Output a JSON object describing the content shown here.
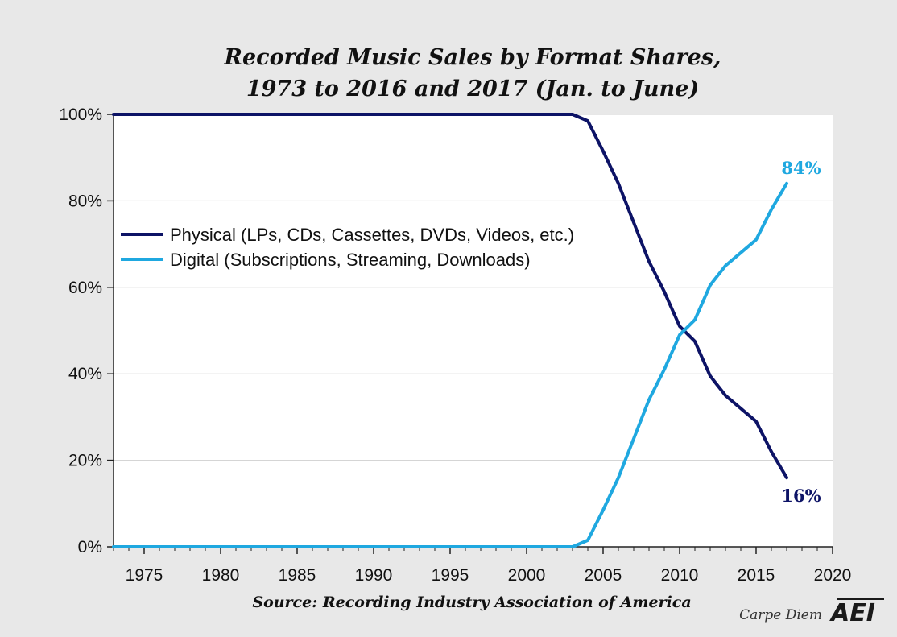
{
  "chart_data": {
    "type": "line",
    "title_line1": "Recorded Music Sales by Format Shares,",
    "title_line2": "1973 to 2016 and 2017 (Jan. to June)",
    "source": "Source: Recording Industry Association of America",
    "xlim": [
      1973,
      2020
    ],
    "ylim": [
      0,
      100
    ],
    "x_ticks": [
      1975,
      1980,
      1985,
      1990,
      1995,
      2000,
      2005,
      2010,
      2015,
      2020
    ],
    "y_ticks": [
      {
        "value": 0,
        "label": "0%"
      },
      {
        "value": 20,
        "label": "20%"
      },
      {
        "value": 40,
        "label": "40%"
      },
      {
        "value": 60,
        "label": "60%"
      },
      {
        "value": 80,
        "label": "80%"
      },
      {
        "value": 100,
        "label": "100%"
      }
    ],
    "grid": true,
    "legend_position": "upper-left",
    "series": [
      {
        "name": "Physical (LPs, CDs, Cassettes, DVDs, Videos, etc.)",
        "color": "#0d1366",
        "x": [
          1973,
          2003,
          2004,
          2005,
          2006,
          2007,
          2008,
          2009,
          2010,
          2011,
          2012,
          2013,
          2014,
          2015,
          2016,
          2017
        ],
        "y": [
          100,
          100,
          98.5,
          91.5,
          84,
          75,
          66,
          59,
          51,
          47.5,
          39.5,
          35,
          32,
          29,
          22,
          16
        ],
        "end_label": "16%"
      },
      {
        "name": "Digital (Subscriptions, Streaming, Downloads)",
        "color": "#1fa8e0",
        "x": [
          1973,
          2003,
          2004,
          2005,
          2006,
          2007,
          2008,
          2009,
          2010,
          2011,
          2012,
          2013,
          2014,
          2015,
          2016,
          2017
        ],
        "y": [
          0,
          0,
          1.5,
          8.5,
          16,
          25,
          34,
          41,
          49,
          52.5,
          60.5,
          65,
          68,
          71,
          78,
          84
        ],
        "end_label": "84%"
      }
    ]
  },
  "branding": {
    "credit": "Carpe Diem",
    "logo": "AEI"
  }
}
